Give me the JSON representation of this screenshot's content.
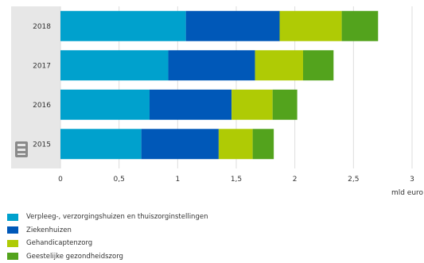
{
  "chart_data": {
    "type": "bar",
    "orientation": "horizontal",
    "stacked": true,
    "categories": [
      "2018",
      "2017",
      "2016",
      "2015"
    ],
    "series": [
      {
        "name": "Verpleeg-, verzorgingshuizen en thuiszorginstellingen",
        "color": "#00a1cd",
        "values": [
          1.07,
          0.92,
          0.76,
          0.69
        ]
      },
      {
        "name": "Ziekenhuizen",
        "color": "#0058b8",
        "values": [
          0.8,
          0.74,
          0.7,
          0.66
        ]
      },
      {
        "name": "Gehandicaptenzorg",
        "color": "#afcb05",
        "values": [
          0.53,
          0.41,
          0.35,
          0.29
        ]
      },
      {
        "name": "Geestelijke gezondheidszorg",
        "color": "#53a31d",
        "values": [
          0.31,
          0.26,
          0.21,
          0.18
        ]
      }
    ],
    "xlim": [
      0,
      3
    ],
    "x_ticks": [
      "0",
      "0,5",
      "1",
      "1,5",
      "2",
      "2,5",
      "3"
    ],
    "x_unit": "mld euro",
    "xlabel": "",
    "ylabel": "",
    "grid": true,
    "legend_position": "bottom"
  }
}
